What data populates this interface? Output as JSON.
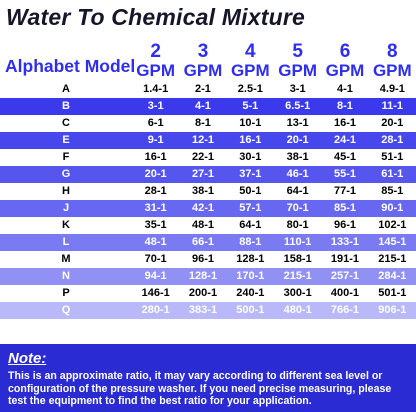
{
  "title": "Water To Chemical Mixture",
  "header": {
    "model_label": "Alphabet Model",
    "gpm_columns": [
      {
        "num": "2",
        "unit": "GPM"
      },
      {
        "num": "3",
        "unit": "GPM"
      },
      {
        "num": "4",
        "unit": "GPM"
      },
      {
        "num": "5",
        "unit": "GPM"
      },
      {
        "num": "6",
        "unit": "GPM"
      },
      {
        "num": "8",
        "unit": "GPM"
      }
    ]
  },
  "rows": [
    {
      "model": "A",
      "values": [
        "1.4-1",
        "2-1",
        "2.5-1",
        "3-1",
        "4-1",
        "4.9-1"
      ],
      "bg": "#ffffff",
      "fg": "#000000"
    },
    {
      "model": "B",
      "values": [
        "3-1",
        "4-1",
        "5-1",
        "6.5-1",
        "8-1",
        "11-1"
      ],
      "bg": "#3a3aec",
      "fg": "#ffffff"
    },
    {
      "model": "C",
      "values": [
        "6-1",
        "8-1",
        "10-1",
        "13-1",
        "16-1",
        "20-1"
      ],
      "bg": "#ffffff",
      "fg": "#000000"
    },
    {
      "model": "E",
      "values": [
        "9-1",
        "12-1",
        "16-1",
        "20-1",
        "24-1",
        "28-1"
      ],
      "bg": "#4747ee",
      "fg": "#ffffff"
    },
    {
      "model": "F",
      "values": [
        "16-1",
        "22-1",
        "30-1",
        "38-1",
        "45-1",
        "51-1"
      ],
      "bg": "#ffffff",
      "fg": "#000000"
    },
    {
      "model": "G",
      "values": [
        "20-1",
        "27-1",
        "37-1",
        "46-1",
        "55-1",
        "61-1"
      ],
      "bg": "#5656ef",
      "fg": "#ffffff"
    },
    {
      "model": "H",
      "values": [
        "28-1",
        "38-1",
        "50-1",
        "64-1",
        "77-1",
        "85-1"
      ],
      "bg": "#ffffff",
      "fg": "#000000"
    },
    {
      "model": "J",
      "values": [
        "31-1",
        "42-1",
        "57-1",
        "70-1",
        "85-1",
        "90-1"
      ],
      "bg": "#6767f1",
      "fg": "#ffffff"
    },
    {
      "model": "K",
      "values": [
        "35-1",
        "48-1",
        "64-1",
        "80-1",
        "96-1",
        "102-1"
      ],
      "bg": "#ffffff",
      "fg": "#000000"
    },
    {
      "model": "L",
      "values": [
        "48-1",
        "66-1",
        "88-1",
        "110-1",
        "133-1",
        "145-1"
      ],
      "bg": "#7a7af3",
      "fg": "#ffffff"
    },
    {
      "model": "M",
      "values": [
        "70-1",
        "96-1",
        "128-1",
        "158-1",
        "191-1",
        "215-1"
      ],
      "bg": "#ffffff",
      "fg": "#000000"
    },
    {
      "model": "N",
      "values": [
        "94-1",
        "128-1",
        "170-1",
        "215-1",
        "257-1",
        "284-1"
      ],
      "bg": "#9090f5",
      "fg": "#ffffff"
    },
    {
      "model": "P",
      "values": [
        "146-1",
        "200-1",
        "240-1",
        "300-1",
        "400-1",
        "501-1"
      ],
      "bg": "#ffffff",
      "fg": "#000000"
    },
    {
      "model": "Q",
      "values": [
        "280-1",
        "383-1",
        "500-1",
        "480-1",
        "766-1",
        "906-1"
      ],
      "bg": "#b9b9f9",
      "fg": "#ffffff"
    }
  ],
  "note": {
    "title": "Note:",
    "text": "This is an approximate ratio, it may vary according to different sea level or configuration of the pressure washer. If you need precise measuring, please test the equipment to find the best ratio for your application."
  }
}
